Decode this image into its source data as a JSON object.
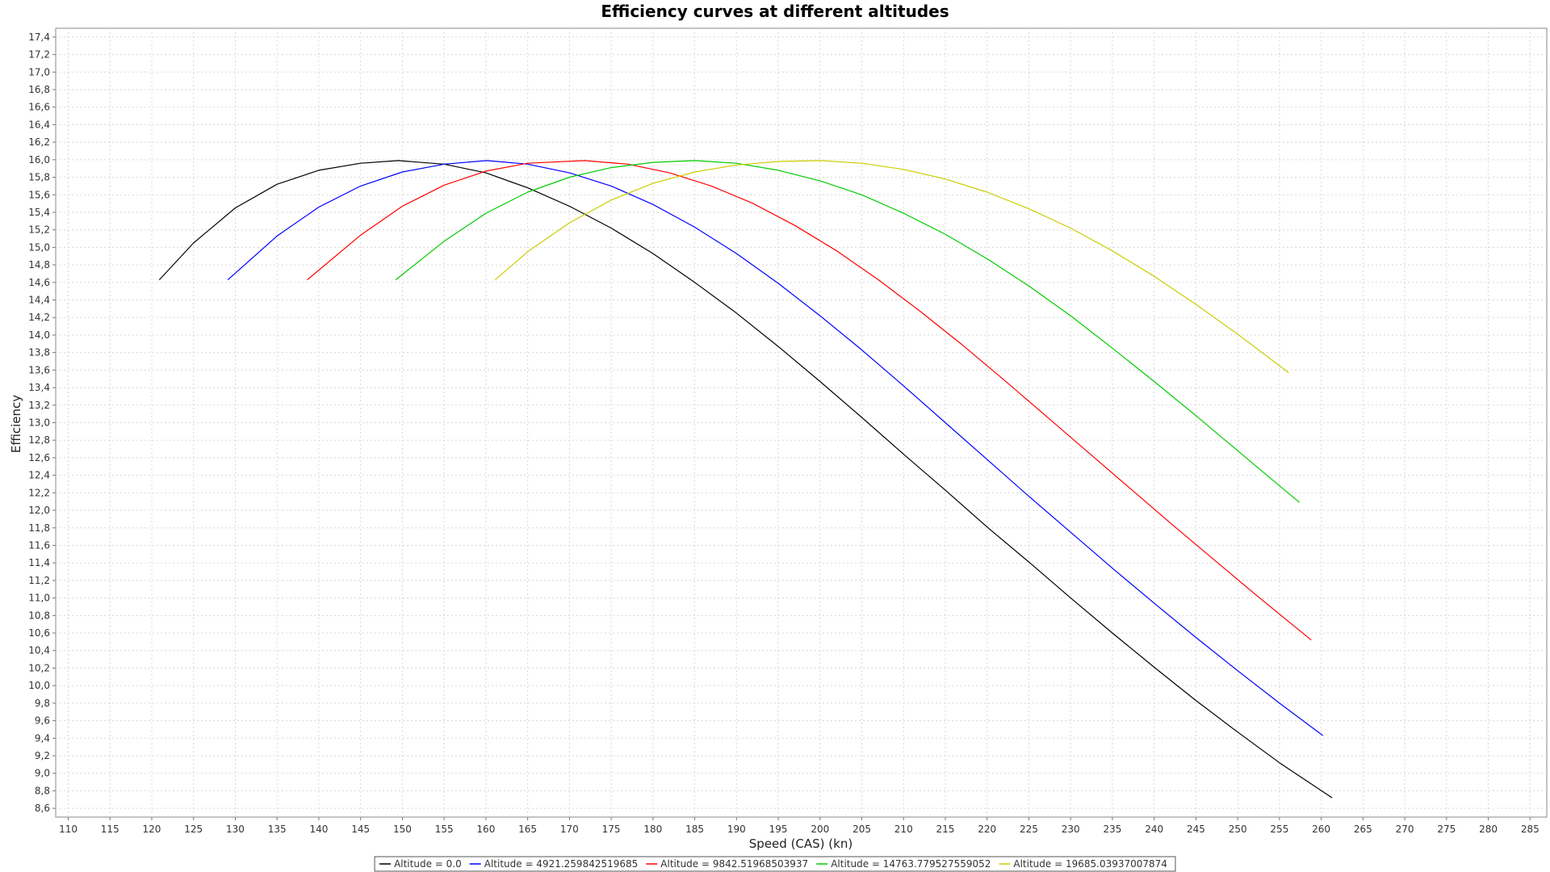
{
  "chart_data": {
    "type": "line",
    "title": "Efficiency curves at different altitudes",
    "xlabel": "Speed (CAS) (kn)",
    "ylabel": "Efficiency",
    "xlim": [
      108.5,
      287
    ],
    "ylim": [
      8.5,
      17.5
    ],
    "x_ticks": [
      "110",
      "115",
      "120",
      "125",
      "130",
      "135",
      "140",
      "145",
      "150",
      "155",
      "160",
      "165",
      "170",
      "175",
      "180",
      "185",
      "190",
      "195",
      "200",
      "205",
      "210",
      "215",
      "220",
      "225",
      "230",
      "235",
      "240",
      "245",
      "250",
      "255",
      "260",
      "265",
      "270",
      "275",
      "280",
      "285"
    ],
    "y_ticks": [
      "8,6",
      "8,8",
      "9,0",
      "9,2",
      "9,4",
      "9,6",
      "9,8",
      "10,0",
      "10,2",
      "10,4",
      "10,6",
      "10,8",
      "11,0",
      "11,2",
      "11,4",
      "11,6",
      "11,8",
      "12,0",
      "12,2",
      "12,4",
      "12,6",
      "12,8",
      "13,0",
      "13,2",
      "13,4",
      "13,6",
      "13,8",
      "14,0",
      "14,2",
      "14,4",
      "14,6",
      "14,8",
      "15,0",
      "15,2",
      "15,4",
      "15,6",
      "15,8",
      "16,0",
      "16,2",
      "16,4",
      "16,6",
      "16,8",
      "17,0",
      "17,2",
      "17,4"
    ],
    "grid": true,
    "legend_position": "bottom",
    "series": [
      {
        "name": "Altitude = 0.0",
        "color": "#000000",
        "points": [
          [
            120.9,
            14.63
          ],
          [
            125,
            15.05
          ],
          [
            130,
            15.45
          ],
          [
            135,
            15.72
          ],
          [
            140,
            15.88
          ],
          [
            145,
            15.96
          ],
          [
            149.5,
            15.99
          ],
          [
            155,
            15.95
          ],
          [
            160,
            15.85
          ],
          [
            165,
            15.68
          ],
          [
            170,
            15.47
          ],
          [
            175,
            15.22
          ],
          [
            180,
            14.93
          ],
          [
            185,
            14.6
          ],
          [
            190,
            14.25
          ],
          [
            195,
            13.87
          ],
          [
            200,
            13.47
          ],
          [
            205,
            13.06
          ],
          [
            210,
            12.64
          ],
          [
            215,
            12.23
          ],
          [
            220,
            11.81
          ],
          [
            225,
            11.41
          ],
          [
            230,
            11.0
          ],
          [
            235,
            10.6
          ],
          [
            240,
            10.21
          ],
          [
            245,
            9.83
          ],
          [
            250,
            9.47
          ],
          [
            255,
            9.12
          ],
          [
            261.3,
            8.72
          ]
        ]
      },
      {
        "name": "Altitude = 4921.259842519685",
        "color": "#0000ff",
        "points": [
          [
            129.1,
            14.63
          ],
          [
            135,
            15.13
          ],
          [
            140,
            15.46
          ],
          [
            145,
            15.7
          ],
          [
            150,
            15.86
          ],
          [
            155,
            15.95
          ],
          [
            160.1,
            15.99
          ],
          [
            165,
            15.95
          ],
          [
            170,
            15.85
          ],
          [
            175,
            15.7
          ],
          [
            180,
            15.49
          ],
          [
            185,
            15.23
          ],
          [
            190,
            14.93
          ],
          [
            195,
            14.59
          ],
          [
            200,
            14.22
          ],
          [
            205,
            13.83
          ],
          [
            210,
            13.42
          ],
          [
            215,
            13.0
          ],
          [
            220,
            12.58
          ],
          [
            225,
            12.16
          ],
          [
            230,
            11.75
          ],
          [
            235,
            11.34
          ],
          [
            240,
            10.94
          ],
          [
            245,
            10.55
          ],
          [
            250,
            10.17
          ],
          [
            255,
            9.8
          ],
          [
            260.2,
            9.43
          ]
        ]
      },
      {
        "name": "Altitude = 9842.51968503937",
        "color": "#ff0000",
        "points": [
          [
            138.6,
            14.63
          ],
          [
            145,
            15.14
          ],
          [
            150,
            15.47
          ],
          [
            155,
            15.71
          ],
          [
            160,
            15.87
          ],
          [
            165,
            15.96
          ],
          [
            171.8,
            15.99
          ],
          [
            177,
            15.95
          ],
          [
            182,
            15.85
          ],
          [
            187,
            15.7
          ],
          [
            192,
            15.5
          ],
          [
            197,
            15.25
          ],
          [
            202,
            14.96
          ],
          [
            207,
            14.63
          ],
          [
            212,
            14.27
          ],
          [
            217,
            13.89
          ],
          [
            222,
            13.49
          ],
          [
            227,
            13.08
          ],
          [
            232,
            12.67
          ],
          [
            237,
            12.26
          ],
          [
            242,
            11.85
          ],
          [
            247,
            11.45
          ],
          [
            252,
            11.05
          ],
          [
            258.8,
            10.52
          ]
        ]
      },
      {
        "name": "Altitude = 14763.779527559052",
        "color": "#00cc00",
        "points": [
          [
            149.2,
            14.63
          ],
          [
            155,
            15.07
          ],
          [
            160,
            15.39
          ],
          [
            165,
            15.63
          ],
          [
            170,
            15.8
          ],
          [
            175,
            15.91
          ],
          [
            180,
            15.97
          ],
          [
            185,
            15.99
          ],
          [
            190,
            15.96
          ],
          [
            195,
            15.88
          ],
          [
            200,
            15.76
          ],
          [
            205,
            15.6
          ],
          [
            210,
            15.39
          ],
          [
            215,
            15.15
          ],
          [
            220,
            14.87
          ],
          [
            225,
            14.56
          ],
          [
            230,
            14.22
          ],
          [
            235,
            13.85
          ],
          [
            240,
            13.47
          ],
          [
            245,
            13.08
          ],
          [
            250,
            12.68
          ],
          [
            255,
            12.28
          ],
          [
            257.4,
            12.09
          ]
        ]
      },
      {
        "name": "Altitude = 19685.03937007874",
        "color": "#cccc00",
        "points": [
          [
            161.1,
            14.63
          ],
          [
            165,
            14.95
          ],
          [
            170,
            15.28
          ],
          [
            175,
            15.54
          ],
          [
            180,
            15.73
          ],
          [
            185,
            15.86
          ],
          [
            190,
            15.94
          ],
          [
            195,
            15.98
          ],
          [
            200,
            15.99
          ],
          [
            205,
            15.96
          ],
          [
            210,
            15.89
          ],
          [
            215,
            15.78
          ],
          [
            220,
            15.63
          ],
          [
            225,
            15.44
          ],
          [
            230,
            15.22
          ],
          [
            235,
            14.96
          ],
          [
            240,
            14.67
          ],
          [
            245,
            14.35
          ],
          [
            250,
            14.01
          ],
          [
            256.1,
            13.57
          ]
        ]
      }
    ]
  }
}
